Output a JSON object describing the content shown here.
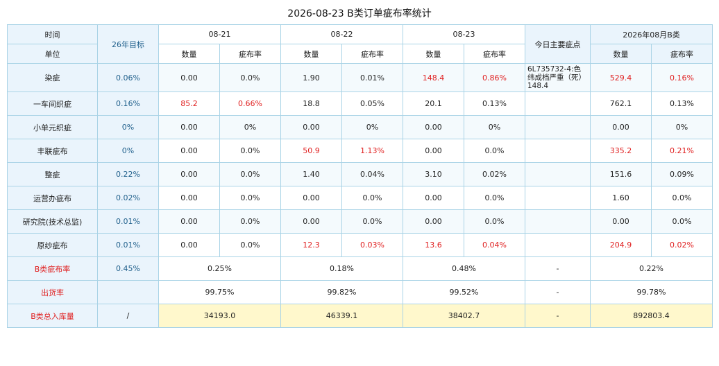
{
  "title": "2026-08-23 B类订单疵布率统计",
  "header": {
    "time_label": "时间",
    "unit_label": "单位",
    "target_label": "26年目标",
    "dates": [
      "08-21",
      "08-22",
      "08-23"
    ],
    "main_defect_label": "今日主要疵点",
    "month_label": "2026年08月B类",
    "qty_label": "数量",
    "rate_label": "疵布率"
  },
  "rows": [
    {
      "unit": "染疵",
      "target": "0.06%",
      "cells": [
        {
          "q": "0.00",
          "r": "0.0%",
          "qbad": false,
          "rbad": false
        },
        {
          "q": "1.90",
          "r": "0.01%",
          "qbad": false,
          "rbad": false
        },
        {
          "q": "148.4",
          "r": "0.86%",
          "qbad": true,
          "rbad": true
        }
      ],
      "note": "6L735732-4:色纬成档严重（死）148.4",
      "month": {
        "q": "529.4",
        "r": "0.16%",
        "qbad": true,
        "rbad": true
      }
    },
    {
      "unit": "一车间织疵",
      "target": "0.16%",
      "cells": [
        {
          "q": "85.2",
          "r": "0.66%",
          "qbad": true,
          "rbad": true
        },
        {
          "q": "18.8",
          "r": "0.05%",
          "qbad": false,
          "rbad": false
        },
        {
          "q": "20.1",
          "r": "0.13%",
          "qbad": false,
          "rbad": false
        }
      ],
      "note": "",
      "month": {
        "q": "762.1",
        "r": "0.13%",
        "qbad": false,
        "rbad": false
      }
    },
    {
      "unit": "小单元织疵",
      "target": "0%",
      "cells": [
        {
          "q": "0.00",
          "r": "0%",
          "qbad": false,
          "rbad": false
        },
        {
          "q": "0.00",
          "r": "0%",
          "qbad": false,
          "rbad": false
        },
        {
          "q": "0.00",
          "r": "0%",
          "qbad": false,
          "rbad": false
        }
      ],
      "note": "",
      "month": {
        "q": "0.00",
        "r": "0%",
        "qbad": false,
        "rbad": false
      }
    },
    {
      "unit": "丰联疵布",
      "target": "0%",
      "cells": [
        {
          "q": "0.00",
          "r": "0.0%",
          "qbad": false,
          "rbad": false
        },
        {
          "q": "50.9",
          "r": "1.13%",
          "qbad": true,
          "rbad": true
        },
        {
          "q": "0.00",
          "r": "0.0%",
          "qbad": false,
          "rbad": false
        }
      ],
      "note": "",
      "month": {
        "q": "335.2",
        "r": "0.21%",
        "qbad": true,
        "rbad": true
      }
    },
    {
      "unit": "整疵",
      "target": "0.22%",
      "cells": [
        {
          "q": "0.00",
          "r": "0.0%",
          "qbad": false,
          "rbad": false
        },
        {
          "q": "1.40",
          "r": "0.04%",
          "qbad": false,
          "rbad": false
        },
        {
          "q": "3.10",
          "r": "0.02%",
          "qbad": false,
          "rbad": false
        }
      ],
      "note": "",
      "month": {
        "q": "151.6",
        "r": "0.09%",
        "qbad": false,
        "rbad": false
      }
    },
    {
      "unit": "运营办疵布",
      "target": "0.02%",
      "cells": [
        {
          "q": "0.00",
          "r": "0.0%",
          "qbad": false,
          "rbad": false
        },
        {
          "q": "0.00",
          "r": "0.0%",
          "qbad": false,
          "rbad": false
        },
        {
          "q": "0.00",
          "r": "0.0%",
          "qbad": false,
          "rbad": false
        }
      ],
      "note": "",
      "month": {
        "q": "1.60",
        "r": "0.0%",
        "qbad": false,
        "rbad": false
      }
    },
    {
      "unit": "研究院(技术总监)",
      "target": "0.01%",
      "cells": [
        {
          "q": "0.00",
          "r": "0.0%",
          "qbad": false,
          "rbad": false
        },
        {
          "q": "0.00",
          "r": "0.0%",
          "qbad": false,
          "rbad": false
        },
        {
          "q": "0.00",
          "r": "0.0%",
          "qbad": false,
          "rbad": false
        }
      ],
      "note": "",
      "month": {
        "q": "0.00",
        "r": "0.0%",
        "qbad": false,
        "rbad": false
      }
    },
    {
      "unit": "原纱疵布",
      "target": "0.01%",
      "cells": [
        {
          "q": "0.00",
          "r": "0.0%",
          "qbad": false,
          "rbad": false
        },
        {
          "q": "12.3",
          "r": "0.03%",
          "qbad": true,
          "rbad": true
        },
        {
          "q": "13.6",
          "r": "0.04%",
          "qbad": true,
          "rbad": true
        }
      ],
      "note": "",
      "month": {
        "q": "204.9",
        "r": "0.02%",
        "qbad": true,
        "rbad": true
      }
    }
  ],
  "summary": [
    {
      "label": "B类疵布率",
      "target": "0.45%",
      "values": [
        "0.25%",
        "0.18%",
        "0.48%"
      ],
      "note": "-",
      "month": "0.22%",
      "yellow": false
    },
    {
      "label": "出货率",
      "target": "",
      "values": [
        "99.75%",
        "99.82%",
        "99.52%"
      ],
      "note": "-",
      "month": "99.78%",
      "yellow": false
    },
    {
      "label": "B类总入库量",
      "target": "/",
      "values": [
        "34193.0",
        "46339.1",
        "38402.7"
      ],
      "note": "-",
      "month": "892803.4",
      "yellow": true
    }
  ],
  "colors": {
    "bad": "#e02020",
    "target": "#1f5f8b",
    "header_bg": "#eaf4fc",
    "border": "#a9d3e6",
    "yellow": "#fff8cc"
  }
}
